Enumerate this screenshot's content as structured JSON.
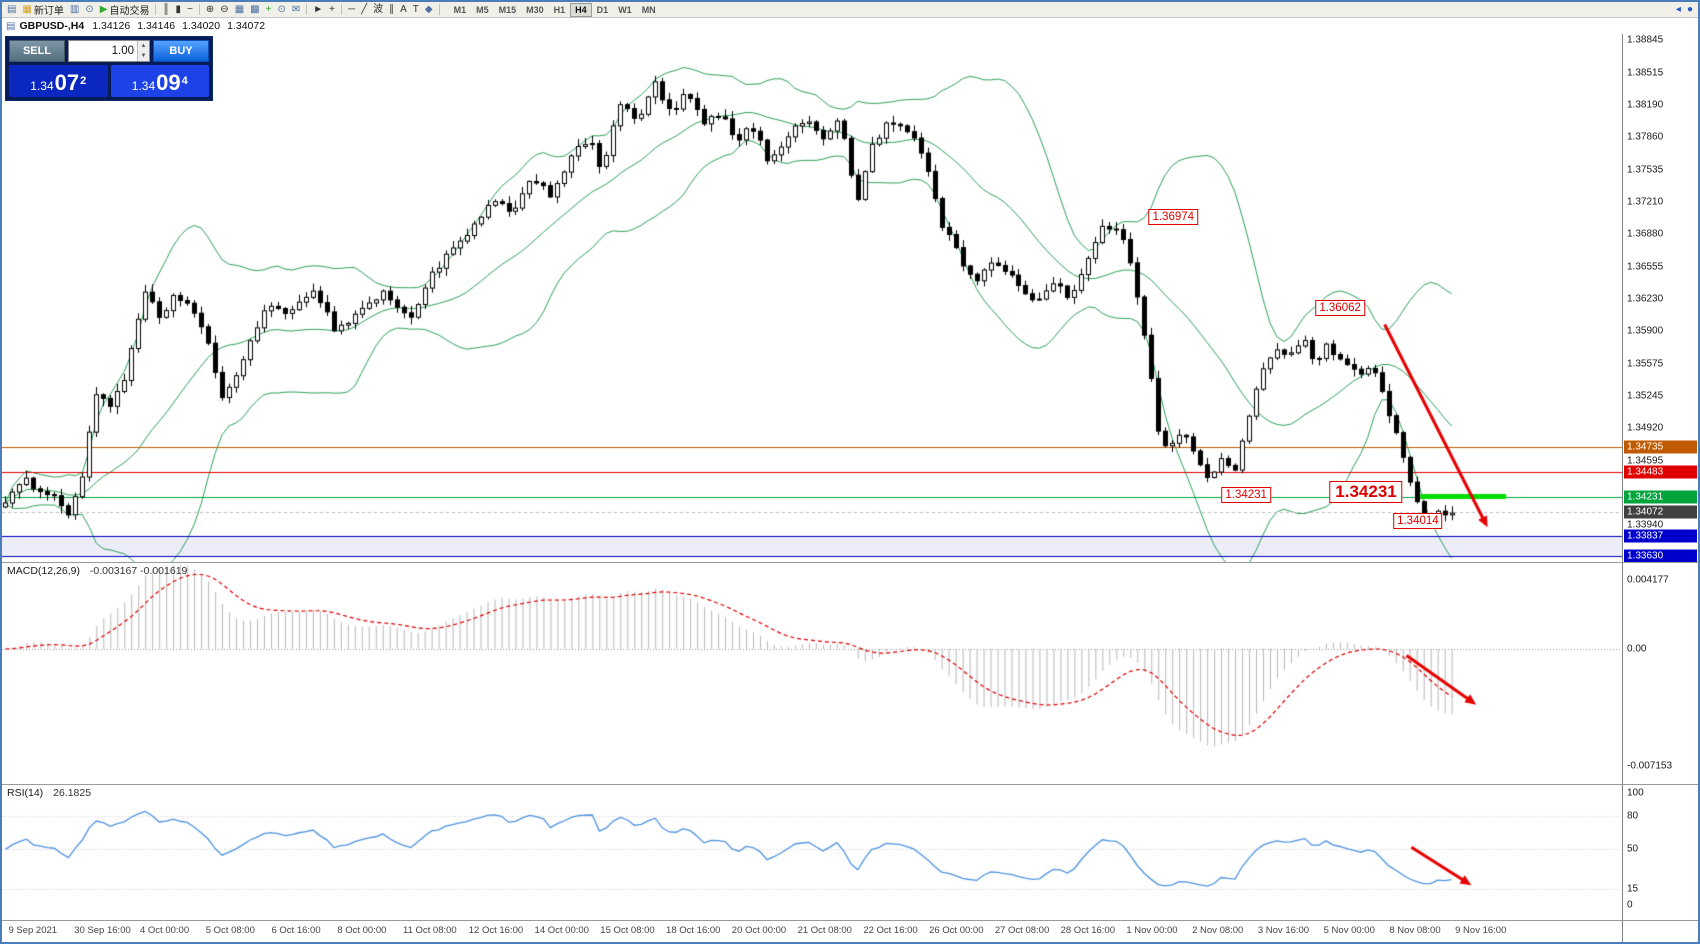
{
  "toolbar": {
    "items": [
      {
        "name": "new-chart-window-icon",
        "glyph": "▤",
        "color": "#4a6fa5"
      },
      {
        "name": "new-order-button",
        "glyph": "▦",
        "color": "#d4a017",
        "label": "新订单"
      },
      {
        "name": "market-watch-icon",
        "glyph": "▥",
        "color": "#4a6fa5"
      },
      {
        "name": "signal-icon",
        "glyph": "⊙",
        "color": "#4a6fa5"
      },
      {
        "name": "autotrade-button",
        "glyph": "▶",
        "color": "#2faa2f",
        "label": "自动交易"
      },
      {
        "sep": true
      },
      {
        "name": "bar-chart-icon",
        "glyph": "║",
        "color": "#333"
      },
      {
        "name": "candlestick-chart-icon",
        "glyph": "▮",
        "color": "#333"
      },
      {
        "name": "line-chart-icon",
        "glyph": "~",
        "color": "#333"
      },
      {
        "sep": true
      },
      {
        "name": "zoom-in-icon",
        "glyph": "⊕",
        "color": "#333"
      },
      {
        "name": "zoom-out-icon",
        "glyph": "⊖",
        "color": "#333"
      },
      {
        "name": "tile-windows-icon",
        "glyph": "▦",
        "color": "#4a6fa5"
      },
      {
        "name": "auto-arrange-icon",
        "glyph": "▩",
        "color": "#4a6fa5"
      },
      {
        "name": "add-indicator-icon",
        "glyph": "+",
        "color": "#2faa2f"
      },
      {
        "name": "period-icon",
        "glyph": "⊙",
        "color": "#4a6fa5"
      },
      {
        "name": "template-icon",
        "glyph": "✉",
        "color": "#4a6fa5"
      },
      {
        "sep": true
      },
      {
        "name": "cursor-icon",
        "glyph": "►",
        "color": "#333"
      },
      {
        "name": "crosshair-icon",
        "glyph": "+",
        "color": "#333"
      },
      {
        "sep": true
      },
      {
        "name": "horizontal-line-icon",
        "glyph": "─",
        "color": "#333"
      },
      {
        "name": "trendline-icon",
        "glyph": "╱",
        "color": "#333"
      },
      {
        "name": "wave-tool-icon",
        "glyph": "波",
        "color": "#333"
      },
      {
        "name": "channel-icon",
        "glyph": "∥",
        "color": "#333"
      },
      {
        "name": "text-icon",
        "glyph": "A",
        "color": "#333"
      },
      {
        "name": "label-icon",
        "glyph": "T",
        "color": "#333"
      },
      {
        "name": "shapes-icon",
        "glyph": "◆",
        "color": "#4a6fa5"
      },
      {
        "sep": true
      }
    ],
    "timeframes": [
      "M1",
      "M5",
      "M15",
      "M30",
      "H1",
      "H4",
      "D1",
      "W1",
      "MN"
    ],
    "active_timeframe": "H4",
    "right_items": [
      {
        "name": "scroll-left-icon",
        "glyph": "◂"
      },
      {
        "name": "status-dot-icon",
        "glyph": "●"
      }
    ]
  },
  "symbol_bar": {
    "symbol": "GBPUSD-,H4",
    "open": "1.34126",
    "high": "1.34146",
    "low": "1.34020",
    "close": "1.34072"
  },
  "trade_panel": {
    "sell_label": "SELL",
    "buy_label": "BUY",
    "volume": "1.00",
    "sell_price": {
      "big": "1.34",
      "pips": "07",
      "frac": "2"
    },
    "buy_price": {
      "big": "1.34",
      "pips": "09",
      "frac": "4"
    }
  },
  "chart_data": {
    "type": "candlestick",
    "symbol": "GBPUSD",
    "timeframe": "H4",
    "num_candles": 208,
    "candles_end_frac": 0.897,
    "price_axis": {
      "max": 1.38905,
      "min": 1.3357,
      "ticks": [
        {
          "text": "1.38845",
          "v": 1.38845
        },
        {
          "text": "1.38515",
          "v": 1.38515
        },
        {
          "text": "1.38190",
          "v": 1.3819
        },
        {
          "text": "1.37860",
          "v": 1.3786
        },
        {
          "text": "1.37535",
          "v": 1.37535
        },
        {
          "text": "1.37210",
          "v": 1.3721
        },
        {
          "text": "1.36880",
          "v": 1.3688
        },
        {
          "text": "1.36555",
          "v": 1.36555
        },
        {
          "text": "1.36230",
          "v": 1.3623
        },
        {
          "text": "1.35900",
          "v": 1.359
        },
        {
          "text": "1.35575",
          "v": 1.35575
        },
        {
          "text": "1.35245",
          "v": 1.35245
        },
        {
          "text": "1.34920",
          "v": 1.3492
        },
        {
          "text": "1.34595",
          "v": 1.34595
        },
        {
          "text": "1.33940",
          "v": 1.3394
        }
      ],
      "tags": [
        {
          "text": "1.34735",
          "v": 1.34735,
          "bg": "#c05a00"
        },
        {
          "text": "1.34483",
          "v": 1.34483,
          "bg": "#e00000"
        },
        {
          "text": "1.34231",
          "v": 1.34231,
          "bg": "#00a43c"
        },
        {
          "text": "1.34072",
          "v": 1.34072,
          "bg": "#404040"
        },
        {
          "text": "1.33837",
          "v": 1.33837,
          "bg": "#0000cc"
        },
        {
          "text": "1.33630",
          "v": 1.3363,
          "bg": "#0000cc"
        }
      ]
    },
    "hlines": [
      {
        "price": 1.34735,
        "color": "#c05a00"
      },
      {
        "price": 1.34483,
        "color": "#e00000"
      },
      {
        "price": 1.34231,
        "color": "#00a43c"
      },
      {
        "price": 1.33837,
        "color": "#0000bb"
      },
      {
        "price": 1.3363,
        "color": "#0000bb"
      }
    ],
    "band_fill": {
      "from": 1.3363,
      "to": 1.33837,
      "color": "rgba(0,0,190,0.07)"
    },
    "current_price": 1.34072,
    "bollinger": {
      "period": 20,
      "deviation": 2,
      "color": "#2fa15b"
    },
    "price_path_anchors": [
      [
        0.0,
        1.342
      ],
      [
        0.013,
        1.3438
      ],
      [
        0.027,
        1.3427
      ],
      [
        0.04,
        1.3406
      ],
      [
        0.048,
        1.3446
      ],
      [
        0.057,
        1.3532
      ],
      [
        0.065,
        1.3515
      ],
      [
        0.075,
        1.3548
      ],
      [
        0.087,
        1.3632
      ],
      [
        0.095,
        1.36
      ],
      [
        0.105,
        1.3628
      ],
      [
        0.115,
        1.3615
      ],
      [
        0.125,
        1.3578
      ],
      [
        0.135,
        1.3522
      ],
      [
        0.148,
        1.3562
      ],
      [
        0.163,
        1.3622
      ],
      [
        0.175,
        1.3602
      ],
      [
        0.19,
        1.3636
      ],
      [
        0.205,
        1.359
      ],
      [
        0.22,
        1.3612
      ],
      [
        0.235,
        1.363
      ],
      [
        0.25,
        1.36
      ],
      [
        0.263,
        1.3646
      ],
      [
        0.277,
        1.3672
      ],
      [
        0.29,
        1.3694
      ],
      [
        0.303,
        1.3724
      ],
      [
        0.315,
        1.3706
      ],
      [
        0.327,
        1.3748
      ],
      [
        0.338,
        1.3728
      ],
      [
        0.35,
        1.3764
      ],
      [
        0.362,
        1.3784
      ],
      [
        0.37,
        1.3752
      ],
      [
        0.38,
        1.382
      ],
      [
        0.392,
        1.3802
      ],
      [
        0.403,
        1.384
      ],
      [
        0.413,
        1.3808
      ],
      [
        0.423,
        1.3832
      ],
      [
        0.433,
        1.3798
      ],
      [
        0.443,
        1.3812
      ],
      [
        0.453,
        1.378
      ],
      [
        0.463,
        1.3798
      ],
      [
        0.473,
        1.3762
      ],
      [
        0.483,
        1.3784
      ],
      [
        0.495,
        1.3804
      ],
      [
        0.507,
        1.3788
      ],
      [
        0.518,
        1.3802
      ],
      [
        0.528,
        1.3718
      ],
      [
        0.537,
        1.3778
      ],
      [
        0.548,
        1.3802
      ],
      [
        0.558,
        1.3794
      ],
      [
        0.57,
        1.3766
      ],
      [
        0.58,
        1.37
      ],
      [
        0.59,
        1.3672
      ],
      [
        0.6,
        1.3638
      ],
      [
        0.61,
        1.3662
      ],
      [
        0.62,
        1.3648
      ],
      [
        0.63,
        1.3636
      ],
      [
        0.64,
        1.3618
      ],
      [
        0.65,
        1.3642
      ],
      [
        0.66,
        1.3624
      ],
      [
        0.67,
        1.3656
      ],
      [
        0.68,
        1.3694
      ],
      [
        0.69,
        1.3696
      ],
      [
        0.7,
        1.3645
      ],
      [
        0.708,
        1.3575
      ],
      [
        0.715,
        1.3492
      ],
      [
        0.722,
        1.347
      ],
      [
        0.73,
        1.349
      ],
      [
        0.738,
        1.3464
      ],
      [
        0.746,
        1.3438
      ],
      [
        0.754,
        1.3464
      ],
      [
        0.762,
        1.3444
      ],
      [
        0.772,
        1.3508
      ],
      [
        0.78,
        1.3554
      ],
      [
        0.788,
        1.3574
      ],
      [
        0.796,
        1.3566
      ],
      [
        0.804,
        1.3584
      ],
      [
        0.812,
        1.3558
      ],
      [
        0.82,
        1.3576
      ],
      [
        0.83,
        1.3558
      ],
      [
        0.84,
        1.3545
      ],
      [
        0.848,
        1.3556
      ],
      [
        0.856,
        1.3518
      ],
      [
        0.864,
        1.3478
      ],
      [
        0.872,
        1.3428
      ],
      [
        0.879,
        1.34
      ],
      [
        0.889,
        1.341
      ],
      [
        0.897,
        1.3407
      ]
    ],
    "annotations": {
      "boxes": [
        {
          "text": "1.36974",
          "x": 0.723,
          "price": 1.37055,
          "size": "small"
        },
        {
          "text": "1.36062",
          "x": 0.826,
          "price": 1.36135,
          "size": "small"
        },
        {
          "text": "1.34231",
          "x": 0.768,
          "price": 1.3425,
          "size": "small"
        },
        {
          "text": "1.34231",
          "x": 0.842,
          "price": 1.34275,
          "size": "large"
        },
        {
          "text": "1.34014",
          "x": 0.874,
          "price": 1.33985,
          "size": "small"
        }
      ],
      "green_segment": {
        "x1": 0.8755,
        "x2": 0.9285,
        "price": 1.34231,
        "color": "#00dd00",
        "width": 5
      },
      "main_arrow": {
        "x1": 0.8535,
        "p1": 1.3597,
        "x2": 0.917,
        "p2": 1.3392,
        "color": "#e60000"
      },
      "macd_arrow": {
        "x1": 0.867,
        "v1": -0.0004,
        "x2": 0.91,
        "v2": -0.0034,
        "color": "#e60000"
      },
      "rsi_arrow": {
        "x1": 0.87,
        "v1": 52,
        "x2": 0.907,
        "v2": 18,
        "color": "#e60000"
      }
    },
    "macd": {
      "label": "MACD(12,26,9)",
      "values": "-0.003167 -0.001619",
      "fast": 12,
      "slow": 26,
      "signal": 9,
      "axis": {
        "top": 0.00475,
        "bottom": -0.00775,
        "ticks": [
          {
            "text": "0.004177",
            "v": 0.004177
          },
          {
            "text": "0.00",
            "v": 0
          },
          {
            "text": "-0.007153",
            "v": -0.007153
          }
        ]
      },
      "histogram_color": "#b8b8b8",
      "signal_color": "#e00000"
    },
    "rsi": {
      "label": "RSI(14)",
      "value": "26.1825",
      "period": 14,
      "color": "#4f94e0",
      "axis_ticks": [
        {
          "text": "100",
          "v": 100
        },
        {
          "text": "80",
          "v": 80
        },
        {
          "text": "50",
          "v": 50
        },
        {
          "text": "15",
          "v": 15
        },
        {
          "text": "0",
          "v": 0
        }
      ],
      "levels": [
        80,
        50,
        15
      ]
    },
    "time_axis": [
      "9 Sep 2021",
      "30 Sep 16:00",
      "4 Oct 00:00",
      "5 Oct 08:00",
      "6 Oct 16:00",
      "8 Oct 00:00",
      "11 Oct 08:00",
      "12 Oct 16:00",
      "14 Oct 00:00",
      "15 Oct 08:00",
      "18 Oct 16:00",
      "20 Oct 00:00",
      "21 Oct 08:00",
      "22 Oct 16:00",
      "26 Oct 00:00",
      "27 Oct 08:00",
      "28 Oct 16:00",
      "1 Nov 00:00",
      "2 Nov 08:00",
      "3 Nov 16:00",
      "5 Nov 00:00",
      "8 Nov 08:00",
      "9 Nov 16:00"
    ]
  }
}
